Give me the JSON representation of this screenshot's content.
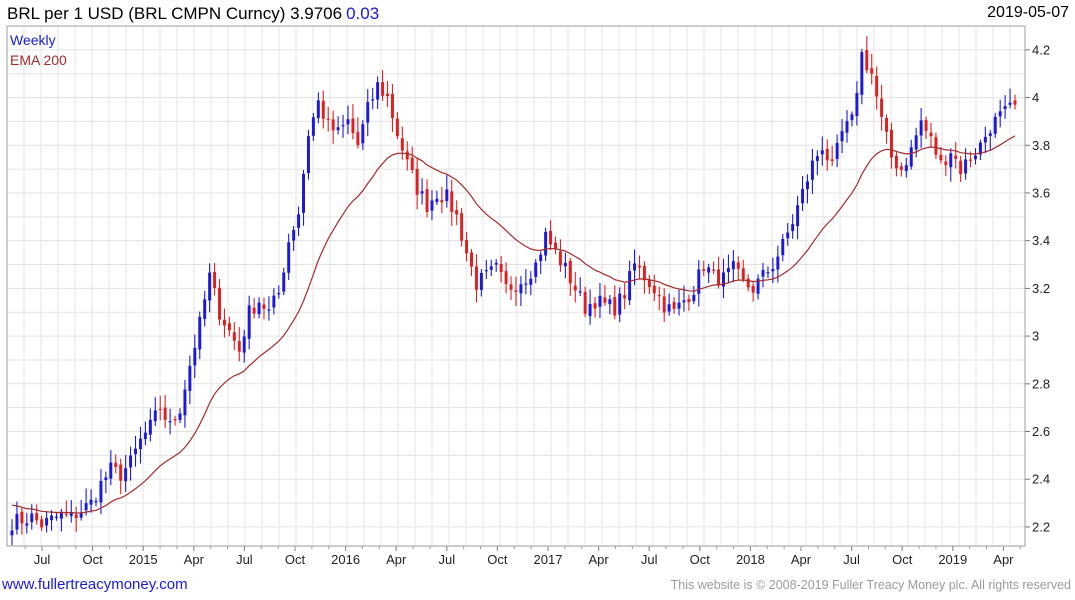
{
  "header": {
    "title": "BRL per 1 USD (BRL CMPN Curncy) 3.9706",
    "change": "0.03",
    "date": "2019-05-07"
  },
  "footer": {
    "site": "www.fullertreacymoney.com",
    "copyright": "This website is © 2008-2019 Fuller Treacy Money plc. All rights reserved"
  },
  "colors": {
    "up": "#1a1adc",
    "down": "#e02020",
    "ema": "#a52a2a",
    "grid": "#e3e3e3"
  },
  "chart_data": {
    "type": "candlestick",
    "legend": [
      "Weekly",
      "EMA 200"
    ],
    "legend_position": "top-left",
    "grid": true,
    "ylim": [
      2.12,
      4.3
    ],
    "y_ticks": [
      "2.2",
      "2.4",
      "2.6",
      "2.8",
      "3",
      "3.2",
      "3.4",
      "3.6",
      "3.8",
      "4",
      "4.2"
    ],
    "x_ticks": [
      "Jul",
      "Oct",
      "2015",
      "Apr",
      "Jul",
      "Oct",
      "2016",
      "Apr",
      "Jul",
      "Oct",
      "2017",
      "Apr",
      "Jul",
      "Oct",
      "2018",
      "Apr",
      "Jul",
      "Oct",
      "2019",
      "Apr"
    ],
    "close_anchors": [
      [
        0,
        2.22
      ],
      [
        4,
        2.24
      ],
      [
        6,
        2.21
      ],
      [
        8,
        2.23
      ],
      [
        10,
        2.25
      ],
      [
        12,
        2.24
      ],
      [
        14,
        2.27
      ],
      [
        16,
        2.3
      ],
      [
        18,
        2.38
      ],
      [
        20,
        2.44
      ],
      [
        22,
        2.42
      ],
      [
        24,
        2.47
      ],
      [
        26,
        2.56
      ],
      [
        28,
        2.62
      ],
      [
        30,
        2.7
      ],
      [
        32,
        2.62
      ],
      [
        34,
        2.7
      ],
      [
        36,
        2.88
      ],
      [
        38,
        3.05
      ],
      [
        40,
        3.25
      ],
      [
        42,
        3.1
      ],
      [
        44,
        3.02
      ],
      [
        46,
        2.94
      ],
      [
        48,
        3.1
      ],
      [
        50,
        3.15
      ],
      [
        52,
        3.1
      ],
      [
        54,
        3.18
      ],
      [
        56,
        3.4
      ],
      [
        58,
        3.52
      ],
      [
        60,
        3.85
      ],
      [
        62,
        3.98
      ],
      [
        64,
        3.88
      ],
      [
        66,
        3.85
      ],
      [
        68,
        3.9
      ],
      [
        70,
        3.8
      ],
      [
        72,
        3.95
      ],
      [
        74,
        4.05
      ],
      [
        76,
        4.0
      ],
      [
        78,
        3.85
      ],
      [
        80,
        3.72
      ],
      [
        82,
        3.62
      ],
      [
        84,
        3.55
      ],
      [
        86,
        3.6
      ],
      [
        88,
        3.58
      ],
      [
        90,
        3.5
      ],
      [
        92,
        3.35
      ],
      [
        94,
        3.22
      ],
      [
        96,
        3.25
      ],
      [
        98,
        3.28
      ],
      [
        100,
        3.2
      ],
      [
        102,
        3.22
      ],
      [
        104,
        3.25
      ],
      [
        106,
        3.3
      ],
      [
        108,
        3.42
      ],
      [
        110,
        3.35
      ],
      [
        112,
        3.28
      ],
      [
        114,
        3.2
      ],
      [
        116,
        3.12
      ],
      [
        118,
        3.15
      ],
      [
        120,
        3.13
      ],
      [
        122,
        3.12
      ],
      [
        124,
        3.18
      ],
      [
        126,
        3.3
      ],
      [
        128,
        3.25
      ],
      [
        130,
        3.2
      ],
      [
        132,
        3.13
      ],
      [
        134,
        3.1
      ],
      [
        136,
        3.15
      ],
      [
        138,
        3.2
      ],
      [
        140,
        3.3
      ],
      [
        142,
        3.25
      ],
      [
        144,
        3.24
      ],
      [
        146,
        3.28
      ],
      [
        148,
        3.22
      ],
      [
        150,
        3.2
      ],
      [
        152,
        3.25
      ],
      [
        154,
        3.3
      ],
      [
        156,
        3.38
      ],
      [
        158,
        3.48
      ],
      [
        160,
        3.6
      ],
      [
        162,
        3.72
      ],
      [
        164,
        3.8
      ],
      [
        166,
        3.7
      ],
      [
        168,
        3.85
      ],
      [
        170,
        3.9
      ],
      [
        172,
        4.18
      ],
      [
        174,
        4.1
      ],
      [
        176,
        3.9
      ],
      [
        178,
        3.75
      ],
      [
        180,
        3.7
      ],
      [
        182,
        3.78
      ],
      [
        184,
        3.9
      ],
      [
        186,
        3.82
      ],
      [
        188,
        3.72
      ],
      [
        190,
        3.78
      ],
      [
        192,
        3.7
      ],
      [
        194,
        3.75
      ],
      [
        196,
        3.8
      ],
      [
        198,
        3.88
      ],
      [
        200,
        3.92
      ],
      [
        202,
        3.95
      ],
      [
        203,
        3.97
      ]
    ]
  }
}
